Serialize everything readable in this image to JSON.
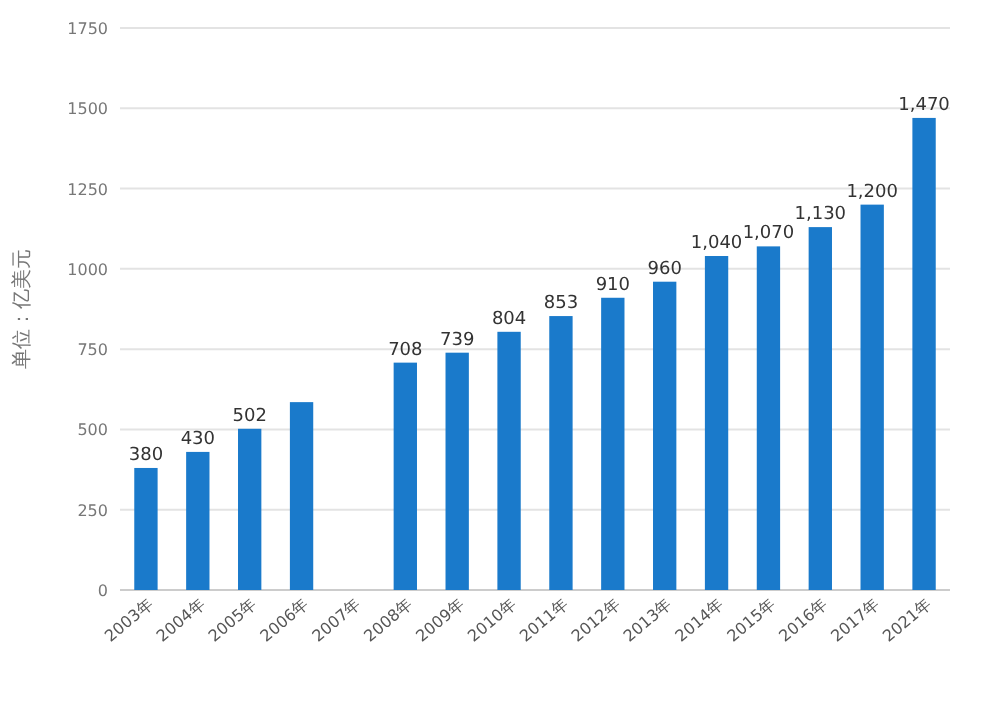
{
  "chart_data": {
    "type": "bar",
    "ylabel": "单位：亿美元",
    "categories": [
      "2003年",
      "2004年",
      "2005年",
      "2006年",
      "2007年",
      "2008年",
      "2009年",
      "2010年",
      "2011年",
      "2012年",
      "2013年",
      "2014年",
      "2015年",
      "2016年",
      "2017年",
      "2021年"
    ],
    "series": [
      {
        "color": "#1a7acb",
        "values": [
          380,
          430,
          502,
          585,
          null,
          708,
          739,
          804,
          853,
          910,
          960,
          1040,
          1070,
          1130,
          1200,
          1470
        ],
        "value_labels": [
          "380",
          "430",
          "502",
          null,
          null,
          "708",
          "739",
          "804",
          "853",
          "910",
          "960",
          "1,040",
          "1,070",
          "1,130",
          "1,200",
          "1,470"
        ]
      }
    ],
    "ylim": [
      0,
      1750
    ],
    "yticks": [
      0,
      250,
      500,
      750,
      1000,
      1250,
      1500,
      1750
    ],
    "grid": "y"
  }
}
